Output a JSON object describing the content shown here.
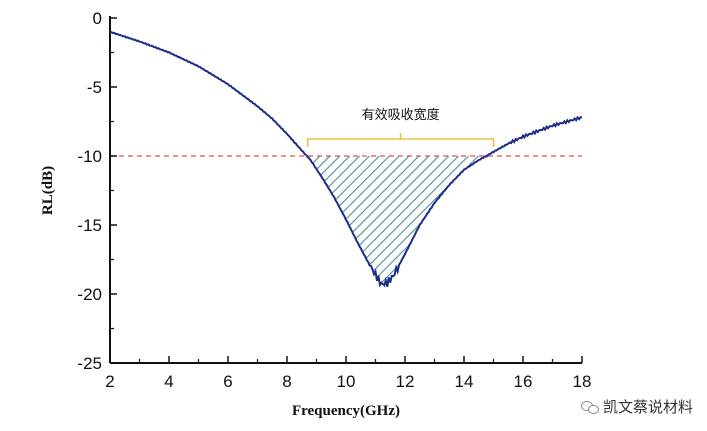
{
  "chart_data": {
    "type": "line",
    "title": "",
    "xlabel": "Frequency(GHz)",
    "ylabel": "RL(dB)",
    "xlim": [
      2,
      18
    ],
    "ylim": [
      -25,
      0
    ],
    "x_ticks": [
      2,
      4,
      6,
      8,
      10,
      12,
      14,
      16,
      18
    ],
    "y_ticks": [
      0,
      -5,
      -10,
      -15,
      -20,
      -25
    ],
    "grid": false,
    "series": [
      {
        "name": "",
        "color": "#1f2d8a",
        "x": [
          2,
          3,
          4,
          5,
          6,
          7,
          7.5,
          8,
          8.5,
          8.8,
          9.2,
          9.6,
          10,
          10.4,
          10.8,
          11.0,
          11.2,
          11.4,
          11.6,
          12.0,
          12.5,
          13,
          13.5,
          14,
          14.5,
          15,
          15.5,
          16,
          16.5,
          17,
          17.5,
          18
        ],
        "y": [
          -1.0,
          -1.7,
          -2.5,
          -3.5,
          -4.8,
          -6.4,
          -7.3,
          -8.4,
          -9.6,
          -10.3,
          -11.6,
          -13.0,
          -14.6,
          -16.3,
          -17.9,
          -18.6,
          -19.3,
          -19.2,
          -18.7,
          -17.1,
          -15.0,
          -13.4,
          -12.1,
          -11.0,
          -10.3,
          -9.7,
          -9.1,
          -8.6,
          -8.2,
          -7.8,
          -7.5,
          -7.2
        ]
      }
    ],
    "reference_line": {
      "y": -10,
      "color": "#e05050",
      "style": "dashed"
    },
    "shaded_region": {
      "x_start": 8.7,
      "x_end": 15.0,
      "below": -10,
      "color": "#2a7a86",
      "pattern": "diagonal-hatch"
    },
    "annotation": {
      "text": "有效吸收宽度",
      "x_start": 8.7,
      "x_end": 15.0,
      "bracket_color": "#e8c440"
    }
  },
  "watermark": {
    "text": "凯文蔡说材料"
  }
}
